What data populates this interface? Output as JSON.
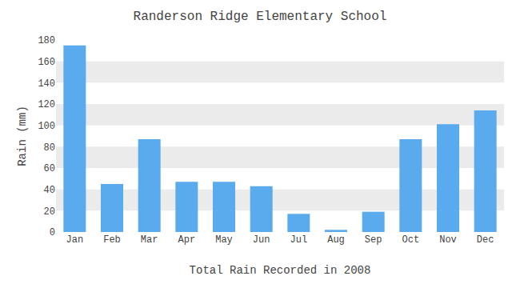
{
  "chart_data": {
    "type": "bar",
    "title": "Randerson Ridge Elementary School",
    "xlabel": "Total Rain Recorded in 2008",
    "ylabel": "Rain (mm)",
    "categories": [
      "Jan",
      "Feb",
      "Mar",
      "Apr",
      "May",
      "Jun",
      "Jul",
      "Aug",
      "Sep",
      "Oct",
      "Nov",
      "Dec"
    ],
    "values": [
      175,
      45,
      87,
      47,
      47,
      43,
      17,
      2,
      19,
      87,
      101,
      114
    ],
    "color": "#5aaaee",
    "ylim": [
      0,
      180
    ],
    "yticks": [
      0,
      20,
      40,
      60,
      80,
      100,
      120,
      140,
      160,
      180
    ],
    "grid": false
  }
}
